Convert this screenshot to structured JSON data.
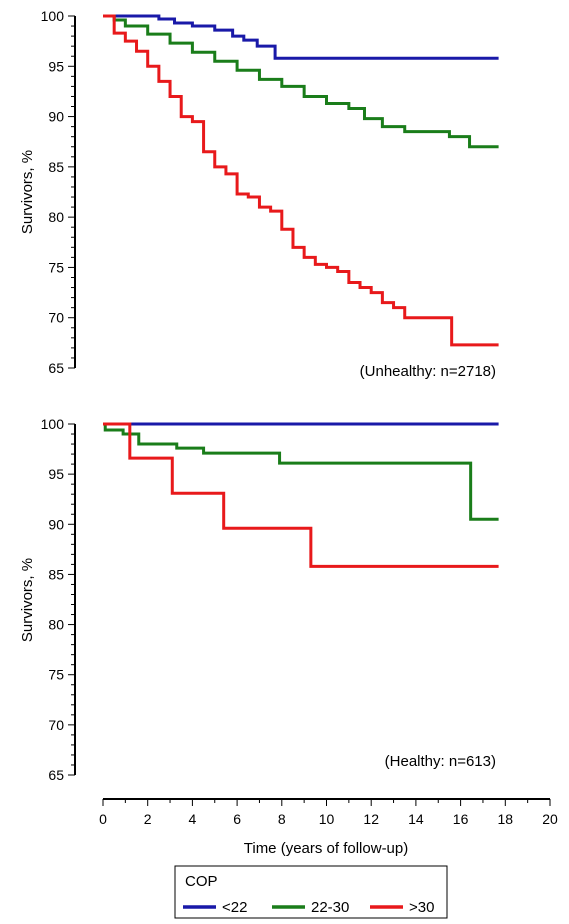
{
  "colors": {
    "cop_lt22": "#1919a8",
    "cop_22_30": "#1a7d1a",
    "cop_gt30": "#e8191b",
    "axis": "#000000"
  },
  "chart_data": [
    {
      "type": "line",
      "step": true,
      "panel": "top",
      "annotation": "(Unhealthy: n=2718)",
      "ylabel": "Survivors, %",
      "xlabel": "",
      "ylim": [
        65,
        100
      ],
      "yticks": [
        100,
        95,
        90,
        85,
        80,
        75,
        70,
        65
      ],
      "series": [
        {
          "name": "<22",
          "color": "#1919a8",
          "x": [
            0,
            1.5,
            2.5,
            3.2,
            4.0,
            5.0,
            5.8,
            6.3,
            6.9,
            7.7,
            17.7
          ],
          "y": [
            100,
            100,
            99.7,
            99.3,
            99.0,
            98.6,
            98.0,
            97.6,
            97.0,
            95.8,
            95.8
          ]
        },
        {
          "name": "22-30",
          "color": "#1a7d1a",
          "x": [
            0,
            0.5,
            1,
            2,
            3,
            4,
            5,
            6,
            7,
            8,
            9,
            10,
            11,
            11.7,
            12.5,
            13.5,
            15.5,
            16.4,
            17.7
          ],
          "y": [
            100,
            99.6,
            99.0,
            98.2,
            97.3,
            96.4,
            95.5,
            94.6,
            93.7,
            93.0,
            92.0,
            91.3,
            90.8,
            89.8,
            89.0,
            88.5,
            88.0,
            87.0,
            87.0
          ]
        },
        {
          "name": ">30",
          "color": "#e8191b",
          "x": [
            0,
            0.5,
            1,
            1.5,
            2,
            2.5,
            3,
            3.5,
            4,
            4.5,
            5,
            5.5,
            6,
            6.5,
            7,
            7.5,
            8,
            8.5,
            9,
            9.5,
            10,
            10.5,
            11,
            11.5,
            12,
            12.5,
            13,
            13.5,
            14,
            15.2,
            15.6,
            17.7
          ],
          "y": [
            100,
            98.3,
            97.5,
            96.5,
            95.0,
            93.5,
            92.0,
            90.0,
            89.5,
            86.5,
            85.0,
            84.3,
            82.3,
            82.0,
            81.0,
            80.6,
            78.8,
            77.0,
            76.0,
            75.3,
            75.0,
            74.6,
            73.5,
            73.0,
            72.5,
            71.5,
            71.0,
            70.0,
            70.0,
            70.0,
            67.3,
            67.3
          ]
        }
      ]
    },
    {
      "type": "line",
      "step": true,
      "panel": "bottom",
      "annotation": "(Healthy: n=613)",
      "ylabel": "Survivors, %",
      "xlabel": "Time (years of follow-up)",
      "xlim": [
        0,
        20
      ],
      "ylim": [
        65,
        100
      ],
      "xticks": [
        0,
        2,
        4,
        6,
        8,
        10,
        12,
        14,
        16,
        18,
        20
      ],
      "yticks": [
        100,
        95,
        90,
        85,
        80,
        75,
        70,
        65
      ],
      "series": [
        {
          "name": "<22",
          "color": "#1919a8",
          "x": [
            0,
            17.7
          ],
          "y": [
            100,
            100
          ]
        },
        {
          "name": "22-30",
          "color": "#1a7d1a",
          "x": [
            0,
            0.1,
            0.9,
            1.6,
            3.3,
            4.5,
            7.9,
            16.3,
            16.45,
            17.7
          ],
          "y": [
            100,
            99.4,
            99.0,
            98.0,
            97.6,
            97.1,
            96.1,
            96.1,
            90.5,
            90.5
          ]
        },
        {
          "name": ">30",
          "color": "#e8191b",
          "x": [
            0,
            1.2,
            3.1,
            5.4,
            9.3,
            17.7
          ],
          "y": [
            100,
            96.6,
            93.1,
            89.6,
            85.8,
            85.8
          ]
        }
      ]
    }
  ],
  "legend": {
    "title": "COP",
    "items": [
      {
        "label": "<22",
        "color": "#1919a8"
      },
      {
        "label": "22-30",
        "color": "#1a7d1a"
      },
      {
        "label": ">30",
        "color": "#e8191b"
      }
    ]
  }
}
